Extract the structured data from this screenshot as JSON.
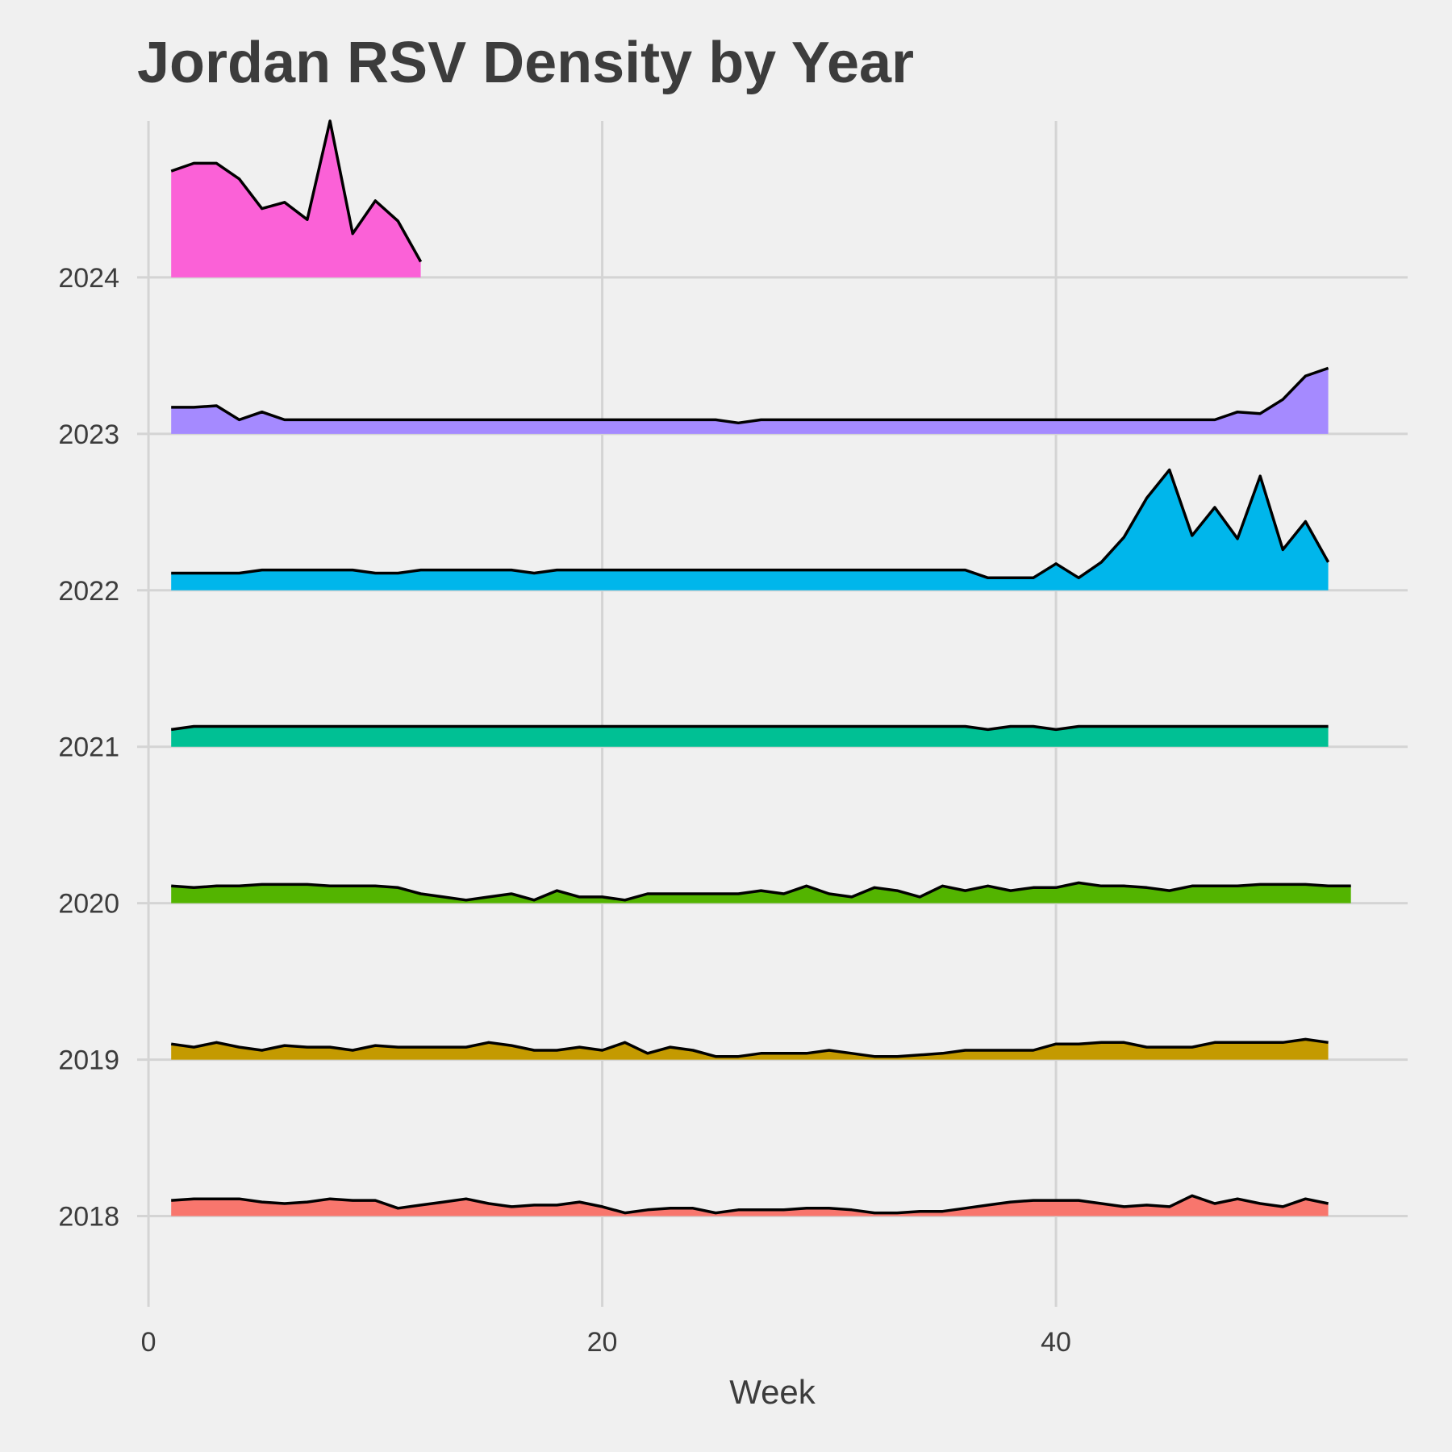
{
  "chart_data": {
    "type": "area",
    "title": "Jordan RSV Density by Year",
    "xlabel": "Week",
    "ylabel": "",
    "xlim": [
      -0.5,
      55.5
    ],
    "ylim": [
      2017.42,
      2025.0
    ],
    "x_ticks": [
      0,
      20,
      40
    ],
    "y_ticks": [
      2018,
      2019,
      2020,
      2021,
      2022,
      2023,
      2024
    ],
    "grid": true,
    "legend": "none",
    "series": [
      {
        "baseline": 2018,
        "color": "#F8766D",
        "x_start": 1,
        "values": [
          0.1,
          0.11,
          0.11,
          0.11,
          0.09,
          0.08,
          0.09,
          0.11,
          0.1,
          0.1,
          0.05,
          0.07,
          0.09,
          0.11,
          0.08,
          0.06,
          0.07,
          0.07,
          0.09,
          0.06,
          0.02,
          0.04,
          0.05,
          0.05,
          0.02,
          0.04,
          0.04,
          0.04,
          0.05,
          0.05,
          0.04,
          0.02,
          0.02,
          0.03,
          0.03,
          0.05,
          0.07,
          0.09,
          0.1,
          0.1,
          0.1,
          0.08,
          0.06,
          0.07,
          0.06,
          0.13,
          0.08,
          0.11,
          0.08,
          0.06,
          0.11,
          0.08
        ]
      },
      {
        "baseline": 2019,
        "color": "#C49A00",
        "x_start": 1,
        "values": [
          0.1,
          0.08,
          0.11,
          0.08,
          0.06,
          0.09,
          0.08,
          0.08,
          0.06,
          0.09,
          0.08,
          0.08,
          0.08,
          0.08,
          0.11,
          0.09,
          0.06,
          0.06,
          0.08,
          0.06,
          0.11,
          0.04,
          0.08,
          0.06,
          0.02,
          0.02,
          0.04,
          0.04,
          0.04,
          0.06,
          0.04,
          0.02,
          0.02,
          0.03,
          0.04,
          0.06,
          0.06,
          0.06,
          0.06,
          0.1,
          0.1,
          0.11,
          0.11,
          0.08,
          0.08,
          0.08,
          0.11,
          0.11,
          0.11,
          0.11,
          0.13,
          0.11
        ]
      },
      {
        "baseline": 2020,
        "color": "#53B400",
        "x_start": 1,
        "values": [
          0.11,
          0.1,
          0.11,
          0.11,
          0.12,
          0.12,
          0.12,
          0.11,
          0.11,
          0.11,
          0.1,
          0.06,
          0.04,
          0.02,
          0.04,
          0.06,
          0.02,
          0.08,
          0.04,
          0.04,
          0.02,
          0.06,
          0.06,
          0.06,
          0.06,
          0.06,
          0.08,
          0.06,
          0.11,
          0.06,
          0.04,
          0.1,
          0.08,
          0.04,
          0.11,
          0.08,
          0.11,
          0.08,
          0.1,
          0.1,
          0.13,
          0.11,
          0.11,
          0.1,
          0.08,
          0.11,
          0.11,
          0.11,
          0.12,
          0.12,
          0.12,
          0.11,
          0.11
        ]
      },
      {
        "baseline": 2021,
        "color": "#00C094",
        "x_start": 1,
        "values": [
          0.11,
          0.13,
          0.13,
          0.13,
          0.13,
          0.13,
          0.13,
          0.13,
          0.13,
          0.13,
          0.13,
          0.13,
          0.13,
          0.13,
          0.13,
          0.13,
          0.13,
          0.13,
          0.13,
          0.13,
          0.13,
          0.13,
          0.13,
          0.13,
          0.13,
          0.13,
          0.13,
          0.13,
          0.13,
          0.13,
          0.13,
          0.13,
          0.13,
          0.13,
          0.13,
          0.13,
          0.11,
          0.13,
          0.13,
          0.11,
          0.13,
          0.13,
          0.13,
          0.13,
          0.13,
          0.13,
          0.13,
          0.13,
          0.13,
          0.13,
          0.13,
          0.13
        ]
      },
      {
        "baseline": 2022,
        "color": "#00B6EB",
        "x_start": 1,
        "values": [
          0.11,
          0.11,
          0.11,
          0.11,
          0.13,
          0.13,
          0.13,
          0.13,
          0.13,
          0.11,
          0.11,
          0.13,
          0.13,
          0.13,
          0.13,
          0.13,
          0.11,
          0.13,
          0.13,
          0.13,
          0.13,
          0.13,
          0.13,
          0.13,
          0.13,
          0.13,
          0.13,
          0.13,
          0.13,
          0.13,
          0.13,
          0.13,
          0.13,
          0.13,
          0.13,
          0.13,
          0.08,
          0.08,
          0.08,
          0.17,
          0.08,
          0.18,
          0.34,
          0.59,
          0.77,
          0.35,
          0.53,
          0.33,
          0.73,
          0.26,
          0.44,
          0.18
        ]
      },
      {
        "baseline": 2023,
        "color": "#A58AFF",
        "x_start": 1,
        "values": [
          0.17,
          0.17,
          0.18,
          0.09,
          0.14,
          0.09,
          0.09,
          0.09,
          0.09,
          0.09,
          0.09,
          0.09,
          0.09,
          0.09,
          0.09,
          0.09,
          0.09,
          0.09,
          0.09,
          0.09,
          0.09,
          0.09,
          0.09,
          0.09,
          0.09,
          0.07,
          0.09,
          0.09,
          0.09,
          0.09,
          0.09,
          0.09,
          0.09,
          0.09,
          0.09,
          0.09,
          0.09,
          0.09,
          0.09,
          0.09,
          0.09,
          0.09,
          0.09,
          0.09,
          0.09,
          0.09,
          0.09,
          0.14,
          0.13,
          0.22,
          0.37,
          0.42
        ]
      },
      {
        "baseline": 2024,
        "color": "#FB61D7",
        "x_start": 1,
        "values": [
          0.68,
          0.73,
          0.73,
          0.63,
          0.44,
          0.48,
          0.37,
          1.0,
          0.28,
          0.49,
          0.36,
          0.1
        ]
      }
    ]
  }
}
